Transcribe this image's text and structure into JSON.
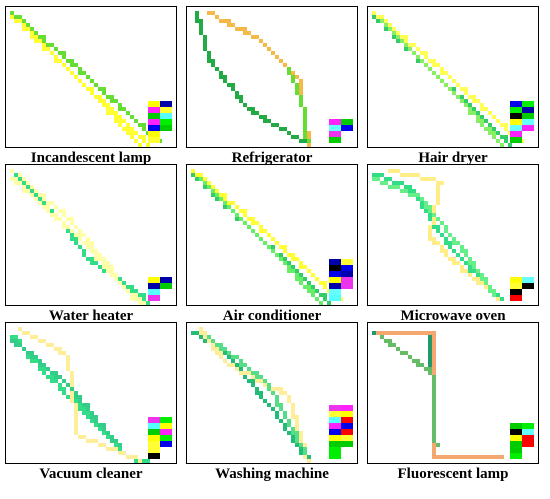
{
  "figure": {
    "panels": [
      {
        "id": "incandescent",
        "label": "Incandescent lamp",
        "style": "diag_bands",
        "palette": [
          "#ffff33",
          "#66dd33",
          "#ffff33"
        ]
      },
      {
        "id": "refrigerator",
        "label": "Refrigerator",
        "style": "eye",
        "palette": [
          "#22aa44",
          "#f5b94a",
          "#66dd33"
        ]
      },
      {
        "id": "hair_dryer",
        "label": "Hair dryer",
        "style": "diag_bands",
        "palette": [
          "#33cc66",
          "#ffff55",
          "#88ee66"
        ]
      },
      {
        "id": "water_heater",
        "label": "Water heater",
        "style": "diag_thin",
        "palette": [
          "#ffffaa",
          "#33dd88",
          "#ffffaa"
        ]
      },
      {
        "id": "air_conditioner",
        "label": "Air conditioner",
        "style": "diag_bands",
        "palette": [
          "#33cc66",
          "#ffff33",
          "#66ee66"
        ]
      },
      {
        "id": "microwave",
        "label": "Microwave oven",
        "style": "wiggle",
        "palette": [
          "#33dd88",
          "#ffee88",
          "#66ee88"
        ]
      },
      {
        "id": "vacuum",
        "label": "Vacuum cleaner",
        "style": "scurve",
        "palette": [
          "#33dd88",
          "#ffee99",
          "#33cc88"
        ]
      },
      {
        "id": "washing_machine",
        "label": "Washing machine",
        "style": "eye_s",
        "palette": [
          "#22bb77",
          "#ffee99",
          "#55dd88"
        ]
      },
      {
        "id": "fluorescent",
        "label": "Fluorescent lamp",
        "style": "step",
        "palette": [
          "#229966",
          "#f4a870",
          "#66bb66"
        ]
      }
    ],
    "legend_colors": [
      "#66ffff",
      "#0000ee",
      "#ff22ff",
      "#ffff00",
      "#00ee00",
      "#000000",
      "#ff0000",
      "#55ffff",
      "#ee33ee",
      "#00cc00",
      "#ffff33",
      "#0000aa"
    ]
  }
}
